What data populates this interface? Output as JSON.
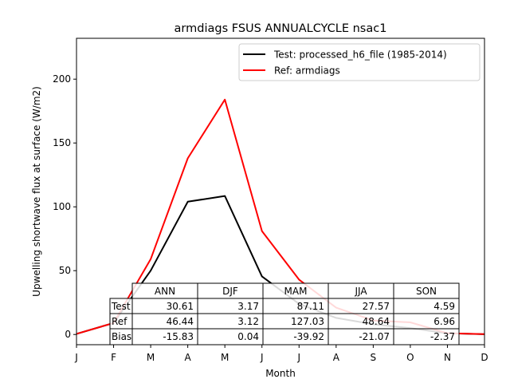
{
  "chart_data": {
    "type": "line",
    "title": "armdiags FSUS ANNUALCYCLE nsac1",
    "xlabel": "Month",
    "ylabel": "Upwelling shortwave flux at surface (W/m2)",
    "categories": [
      "J",
      "F",
      "M",
      "A",
      "M",
      "J",
      "J",
      "A",
      "S",
      "O",
      "N",
      "D"
    ],
    "ylim": [
      -8,
      232
    ],
    "yticks": [
      0,
      50,
      100,
      150,
      200
    ],
    "grid": false,
    "legend_position": "top-right",
    "series": [
      {
        "name": "Test: processed_h6_file (1985-2014)",
        "color": "#000000",
        "values": [
          0.5,
          9,
          50,
          104,
          108.5,
          45.5,
          24,
          13,
          8,
          5,
          1,
          0.2
        ]
      },
      {
        "name": "Ref: armdiags",
        "color": "#ff0000",
        "values": [
          0.5,
          9,
          59,
          138,
          184,
          81,
          43,
          21,
          11,
          9.5,
          1,
          0.3
        ]
      }
    ],
    "table": {
      "columns": [
        "ANN",
        "DJF",
        "MAM",
        "JJA",
        "SON"
      ],
      "rows": [
        {
          "label": "Test",
          "values": [
            "30.61",
            "3.17",
            "87.11",
            "27.57",
            "4.59"
          ]
        },
        {
          "label": "Ref",
          "values": [
            "46.44",
            "3.12",
            "127.03",
            "48.64",
            "6.96"
          ]
        },
        {
          "label": "Bias",
          "values": [
            "-15.83",
            "0.04",
            "-39.92",
            "-21.07",
            "-2.37"
          ]
        }
      ]
    }
  }
}
